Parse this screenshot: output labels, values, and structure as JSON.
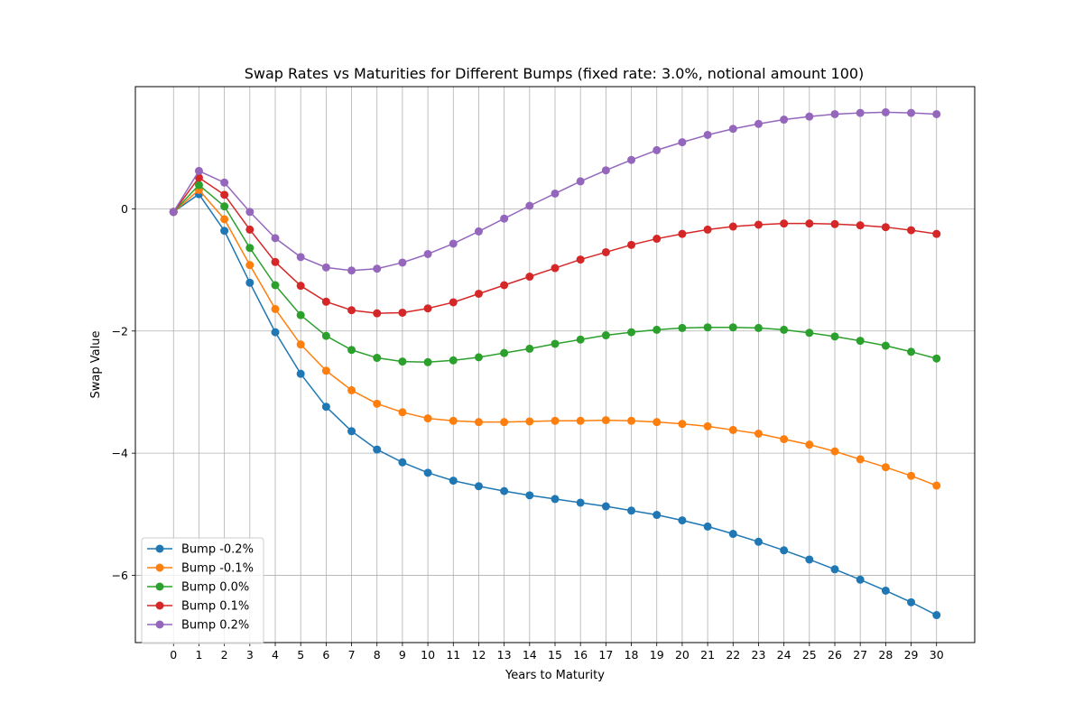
{
  "chart_data": {
    "type": "line",
    "title": "Swap Rates vs Maturities for Different Bumps (fixed rate: 3.0%, notional amount 100)",
    "xlabel": "Years to Maturity",
    "ylabel": "Swap Value",
    "xlim": [
      -1.5,
      31.5
    ],
    "ylim": [
      -7.1,
      2.0
    ],
    "x_ticks": [
      0,
      1,
      2,
      3,
      4,
      5,
      6,
      7,
      8,
      9,
      10,
      11,
      12,
      13,
      14,
      15,
      16,
      17,
      18,
      19,
      20,
      21,
      22,
      23,
      24,
      25,
      26,
      27,
      28,
      29,
      30
    ],
    "y_ticks": [
      -6,
      -4,
      -2,
      0
    ],
    "y_tick_labels": [
      "−6",
      "−4",
      "−2",
      "0"
    ],
    "grid": true,
    "legend_position": "lower-left",
    "x": [
      0,
      1,
      2,
      3,
      4,
      5,
      6,
      7,
      8,
      9,
      10,
      11,
      12,
      13,
      14,
      15,
      16,
      17,
      18,
      19,
      20,
      21,
      22,
      23,
      24,
      25,
      26,
      27,
      28,
      29,
      30
    ],
    "series": [
      {
        "name": "Bump -0.2%",
        "color": "#1f77b4",
        "values": [
          -0.05,
          0.24,
          -0.36,
          -1.21,
          -2.02,
          -2.7,
          -3.24,
          -3.64,
          -3.94,
          -4.15,
          -4.32,
          -4.45,
          -4.54,
          -4.62,
          -4.69,
          -4.75,
          -4.81,
          -4.87,
          -4.94,
          -5.01,
          -5.1,
          -5.2,
          -5.32,
          -5.45,
          -5.59,
          -5.74,
          -5.9,
          -6.07,
          -6.25,
          -6.44,
          -6.65
        ]
      },
      {
        "name": "Bump -0.1%",
        "color": "#ff7f0e",
        "values": [
          -0.05,
          0.31,
          -0.17,
          -0.92,
          -1.64,
          -2.22,
          -2.65,
          -2.97,
          -3.19,
          -3.33,
          -3.43,
          -3.47,
          -3.49,
          -3.49,
          -3.48,
          -3.47,
          -3.47,
          -3.46,
          -3.47,
          -3.49,
          -3.52,
          -3.56,
          -3.62,
          -3.68,
          -3.77,
          -3.86,
          -3.97,
          -4.1,
          -4.23,
          -4.37,
          -4.53
        ]
      },
      {
        "name": "Bump 0.0%",
        "color": "#2ca02c",
        "values": [
          -0.05,
          0.39,
          0.04,
          -0.64,
          -1.25,
          -1.74,
          -2.08,
          -2.31,
          -2.44,
          -2.5,
          -2.51,
          -2.48,
          -2.43,
          -2.36,
          -2.29,
          -2.21,
          -2.14,
          -2.07,
          -2.02,
          -1.98,
          -1.95,
          -1.94,
          -1.94,
          -1.95,
          -1.98,
          -2.03,
          -2.09,
          -2.16,
          -2.24,
          -2.34,
          -2.45
        ]
      },
      {
        "name": "Bump 0.1%",
        "color": "#d62728",
        "values": [
          -0.05,
          0.51,
          0.23,
          -0.34,
          -0.87,
          -1.26,
          -1.52,
          -1.66,
          -1.71,
          -1.7,
          -1.63,
          -1.53,
          -1.39,
          -1.25,
          -1.11,
          -0.97,
          -0.83,
          -0.71,
          -0.59,
          -0.49,
          -0.41,
          -0.34,
          -0.29,
          -0.26,
          -0.24,
          -0.24,
          -0.25,
          -0.27,
          -0.3,
          -0.35,
          -0.41
        ]
      },
      {
        "name": "Bump 0.2%",
        "color": "#9467bd",
        "values": [
          -0.05,
          0.62,
          0.43,
          -0.05,
          -0.48,
          -0.79,
          -0.96,
          -1.01,
          -0.98,
          -0.88,
          -0.74,
          -0.57,
          -0.37,
          -0.16,
          0.05,
          0.25,
          0.45,
          0.63,
          0.8,
          0.96,
          1.09,
          1.21,
          1.31,
          1.39,
          1.46,
          1.51,
          1.55,
          1.57,
          1.58,
          1.57,
          1.55
        ]
      }
    ]
  }
}
